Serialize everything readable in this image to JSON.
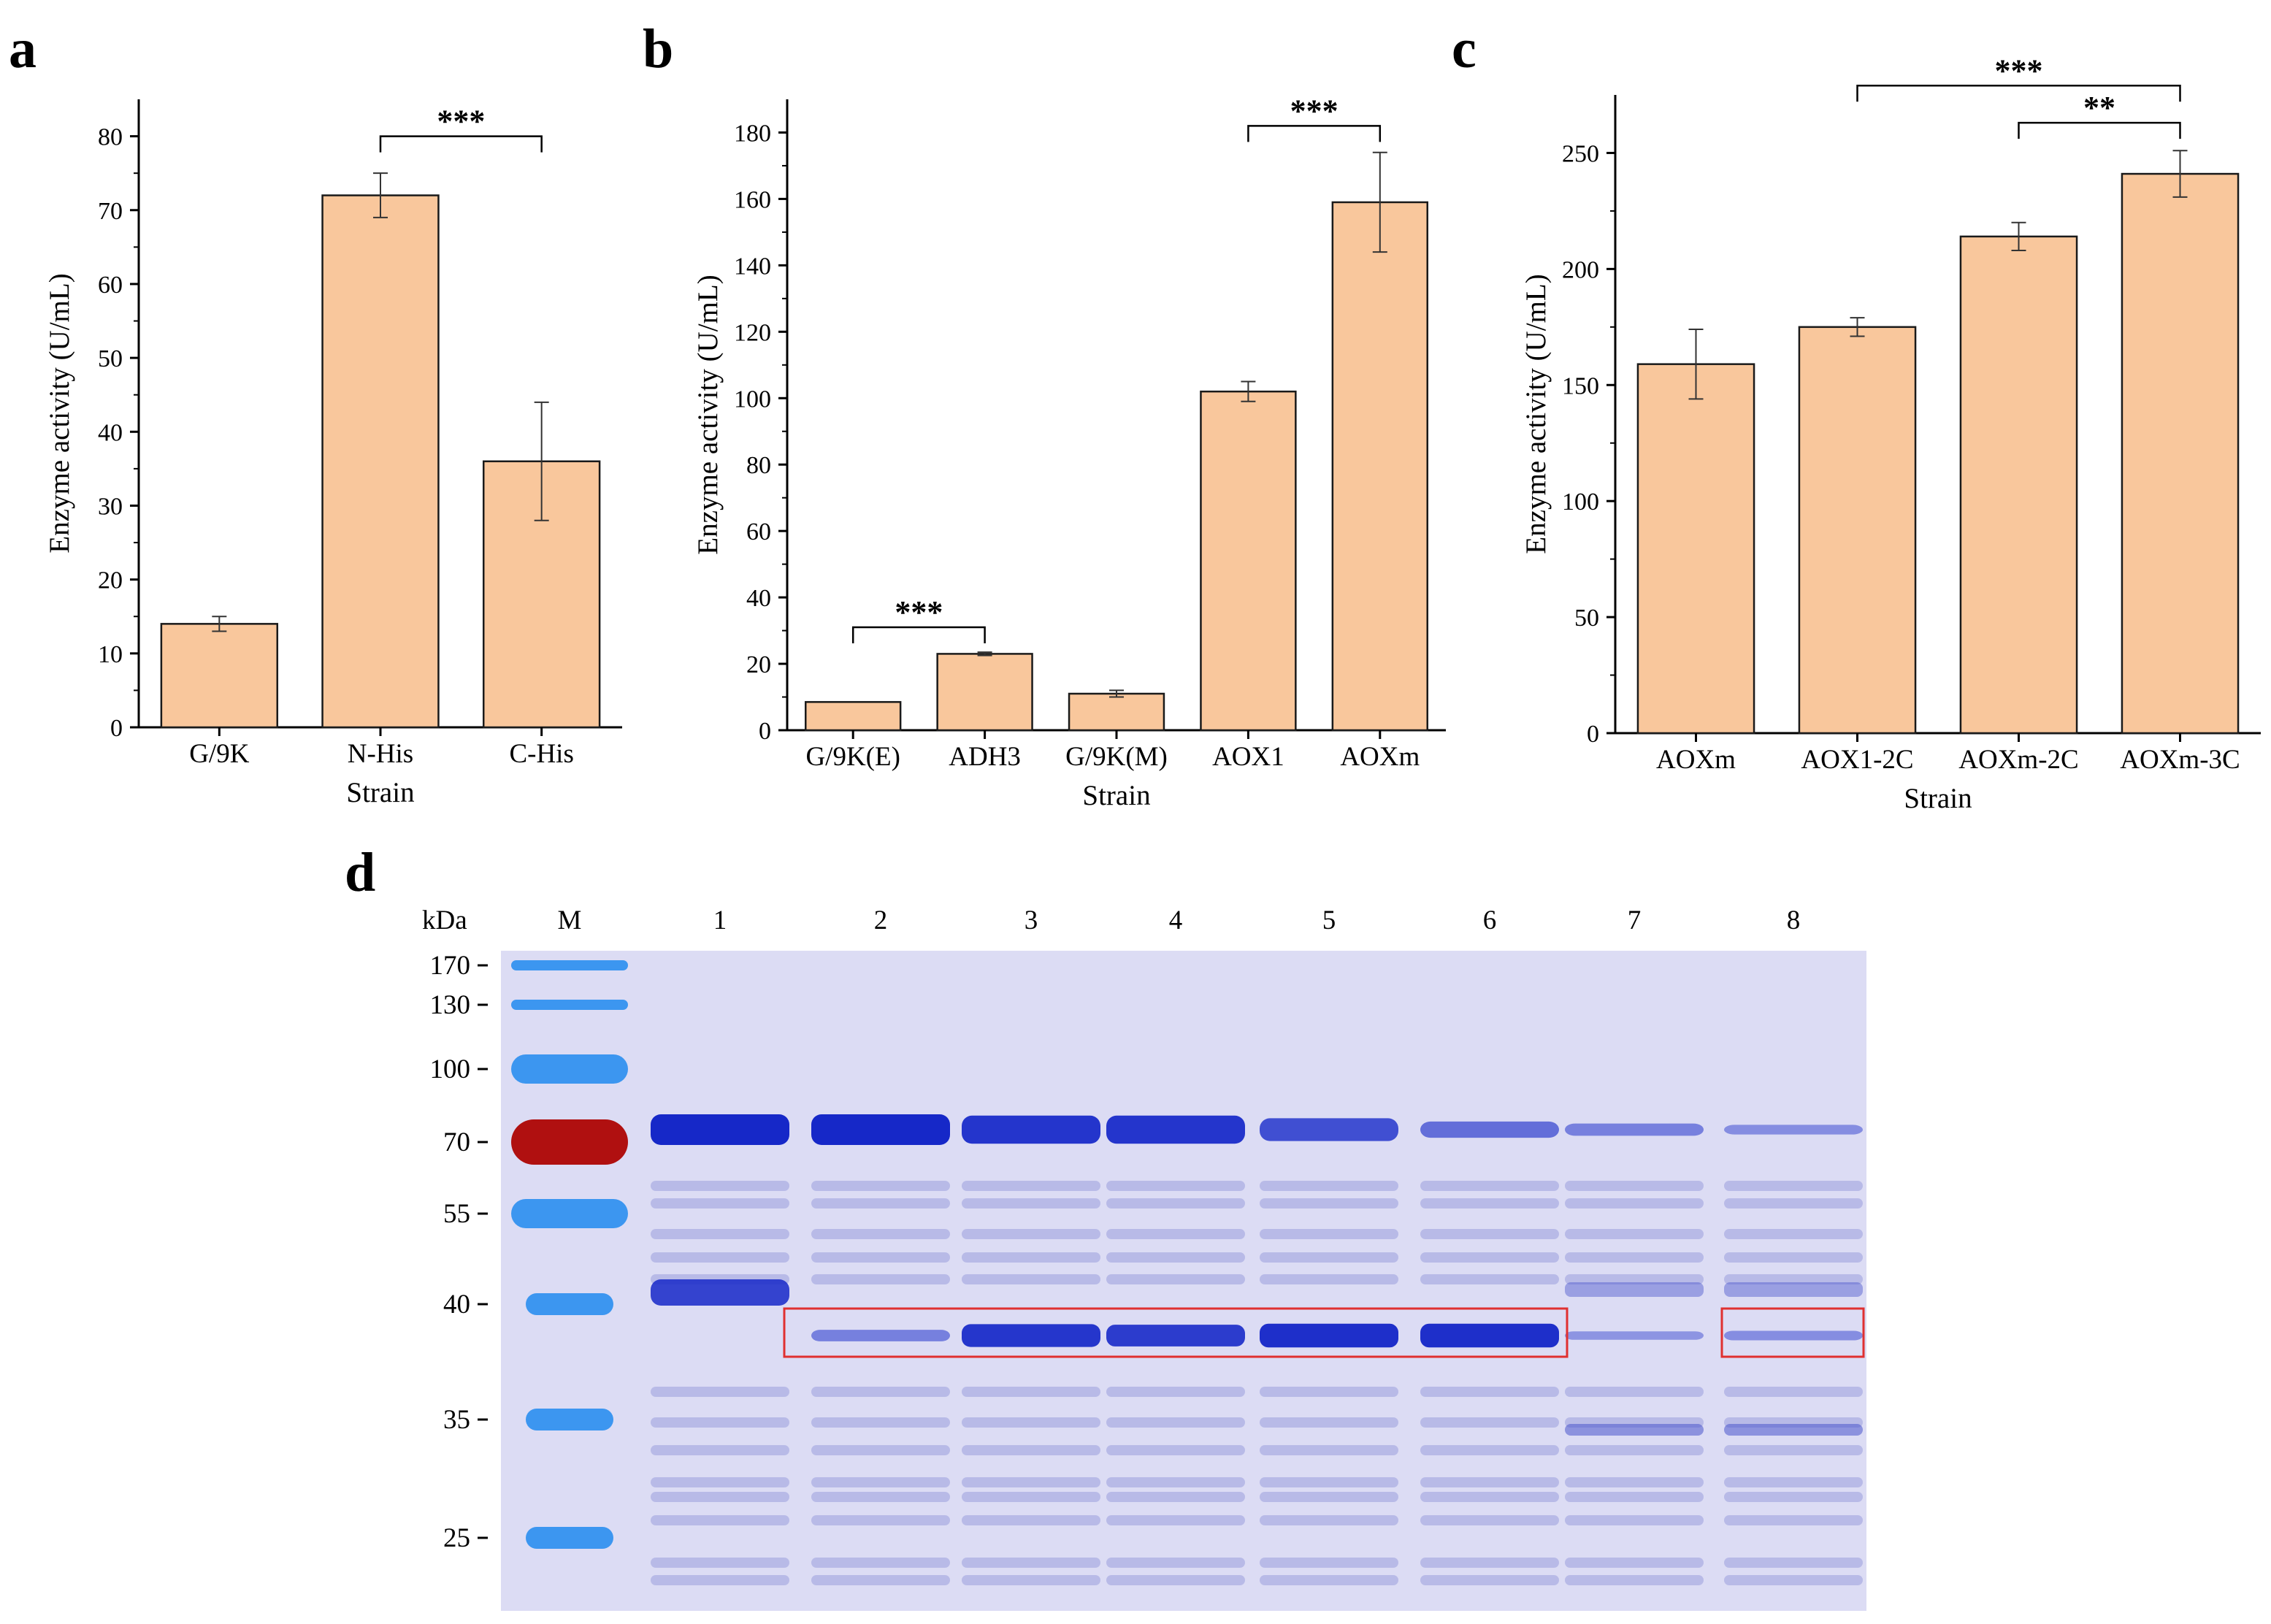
{
  "colors": {
    "bar_fill": "#f9c79c",
    "bar_stroke": "#1a1a1a",
    "gel_bg": "#dcdcf4",
    "band_strong": "#1628c8",
    "band_mid": "#4a55cc",
    "band_faint": "#9a9fdc",
    "ladder_blue": "#2a8ef0",
    "ladder_red": "#b01010",
    "box_red": "#e03030"
  },
  "chart_data": [
    {
      "panel": "a",
      "type": "bar",
      "categories": [
        "G/9K",
        "N-His",
        "C-His"
      ],
      "values": [
        14,
        72,
        36
      ],
      "errors": [
        1,
        3,
        8
      ],
      "xlabel": "Strain",
      "ylabel": "Enzyme activity (U/mL)",
      "ylim": [
        0,
        85
      ],
      "yticks": [
        0,
        10,
        20,
        30,
        40,
        50,
        60,
        70,
        80
      ],
      "significance": [
        {
          "from": 1,
          "to": 2,
          "label": "***",
          "y": 80
        }
      ]
    },
    {
      "panel": "b",
      "type": "bar",
      "categories": [
        "G/9K(E)",
        "ADH3",
        "G/9K(M)",
        "AOX1",
        "AOXm"
      ],
      "values": [
        8.5,
        23,
        11,
        102,
        159
      ],
      "errors": [
        0,
        0.5,
        1,
        3,
        15
      ],
      "xlabel": "Strain",
      "ylabel": "Enzyme activity (U/mL)",
      "ylim": [
        0,
        190
      ],
      "yticks": [
        0,
        20,
        40,
        60,
        80,
        100,
        120,
        140,
        160,
        180
      ],
      "significance": [
        {
          "from": 0,
          "to": 1,
          "label": "***",
          "y": 31
        },
        {
          "from": 3,
          "to": 4,
          "label": "***",
          "y": 182
        }
      ]
    },
    {
      "panel": "c",
      "type": "bar",
      "categories": [
        "AOXm",
        "AOX1-2C",
        "AOXm-2C",
        "AOXm-3C"
      ],
      "values": [
        159,
        175,
        214,
        241
      ],
      "errors": [
        15,
        4,
        6,
        10
      ],
      "xlabel": "Strain",
      "ylabel": "Enzyme activity (U/mL)",
      "ylim": [
        0,
        275
      ],
      "yticks": [
        0,
        50,
        100,
        150,
        200,
        250
      ],
      "significance": [
        {
          "from": 1,
          "to": 3,
          "label": "***",
          "y": 279
        },
        {
          "from": 2,
          "to": 3,
          "label": "**",
          "y": 263
        }
      ]
    }
  ],
  "gel": {
    "panel": "d",
    "unit_label": "kDa",
    "lane_labels": [
      "M",
      "1",
      "2",
      "3",
      "4",
      "5",
      "6",
      "7",
      "8"
    ],
    "marker_kda": [
      "170",
      "130",
      "100",
      "70",
      "55",
      "40",
      "35",
      "25"
    ],
    "target_band_intensity": [
      0.7,
      0.35,
      0.9,
      0.85,
      0.95,
      0.95,
      0.2,
      0.25
    ],
    "main_band_intensity": [
      1.0,
      1.0,
      0.9,
      0.9,
      0.7,
      0.45,
      0.3,
      0.2
    ]
  }
}
